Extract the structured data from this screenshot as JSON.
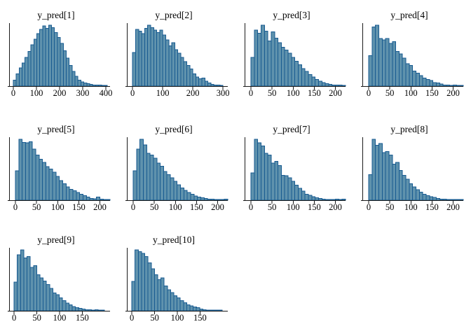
{
  "figure": {
    "background": "#ffffff",
    "bar_fill": "#5f92ad",
    "bar_stroke": "#175a90",
    "axis_color": "#1a1a1a",
    "text_color": "#000000"
  },
  "chart_data": [
    {
      "type": "histogram",
      "title": "y_pred[1]",
      "xticks": [
        0,
        100,
        200,
        300,
        400
      ],
      "xlim": [
        -18,
        418
      ],
      "ylabel": "",
      "xlabel": "",
      "grid": false,
      "bin_start": 0,
      "bin_width": 12.7,
      "heights": [
        0.1,
        0.2,
        0.3,
        0.38,
        0.47,
        0.57,
        0.68,
        0.77,
        0.86,
        0.93,
        0.99,
        0.95,
        1.0,
        0.96,
        0.88,
        0.8,
        0.7,
        0.58,
        0.46,
        0.34,
        0.24,
        0.16,
        0.1,
        0.07,
        0.05,
        0.04,
        0.03,
        0.02,
        0.015,
        0.015,
        0.01,
        0.01
      ]
    },
    {
      "type": "histogram",
      "title": "y_pred[2]",
      "xticks": [
        0,
        100,
        200,
        300
      ],
      "xlim": [
        -19,
        316
      ],
      "ylabel": "",
      "xlabel": "",
      "grid": false,
      "bin_start": 0,
      "bin_width": 10,
      "heights": [
        0.55,
        0.93,
        0.9,
        0.86,
        0.95,
        1.0,
        0.96,
        0.92,
        0.88,
        0.92,
        0.84,
        0.76,
        0.66,
        0.71,
        0.6,
        0.54,
        0.47,
        0.4,
        0.34,
        0.28,
        0.2,
        0.15,
        0.12,
        0.13,
        0.08,
        0.05,
        0.03,
        0.02,
        0.015,
        0.01
      ]
    },
    {
      "type": "histogram",
      "title": "y_pred[3]",
      "xticks": [
        0,
        50,
        100,
        150,
        200
      ],
      "xlim": [
        -15,
        224
      ],
      "ylabel": "",
      "xlabel": "",
      "grid": false,
      "bin_start": 0,
      "bin_width": 8,
      "heights": [
        0.47,
        0.92,
        0.87,
        1.0,
        0.9,
        0.74,
        0.89,
        0.79,
        0.71,
        0.64,
        0.59,
        0.54,
        0.47,
        0.41,
        0.35,
        0.29,
        0.24,
        0.19,
        0.15,
        0.11,
        0.08,
        0.06,
        0.04,
        0.03,
        0.02,
        0.02,
        0.015,
        0.01
      ]
    },
    {
      "type": "histogram",
      "title": "y_pred[4]",
      "xticks": [
        0,
        50,
        100,
        150,
        200
      ],
      "xlim": [
        -15,
        224
      ],
      "ylabel": "",
      "xlabel": "",
      "grid": false,
      "bin_start": 0,
      "bin_width": 8,
      "heights": [
        0.5,
        0.97,
        1.0,
        0.78,
        0.76,
        0.78,
        0.7,
        0.73,
        0.57,
        0.53,
        0.46,
        0.37,
        0.34,
        0.25,
        0.21,
        0.17,
        0.13,
        0.11,
        0.09,
        0.06,
        0.05,
        0.035,
        0.02,
        0.015,
        0.01,
        0.02,
        0.01,
        0.01
      ]
    },
    {
      "type": "histogram",
      "title": "y_pred[5]",
      "xticks": [
        0,
        50,
        100,
        150,
        200
      ],
      "xlim": [
        -15,
        224
      ],
      "ylabel": "",
      "xlabel": "",
      "grid": false,
      "bin_start": 0,
      "bin_width": 8,
      "heights": [
        0.48,
        1.0,
        0.95,
        0.94,
        0.96,
        0.84,
        0.74,
        0.67,
        0.62,
        0.55,
        0.51,
        0.46,
        0.39,
        0.32,
        0.27,
        0.22,
        0.18,
        0.155,
        0.125,
        0.1,
        0.075,
        0.05,
        0.03,
        0.025,
        0.05,
        0.015,
        0.01,
        0.01
      ]
    },
    {
      "type": "histogram",
      "title": "y_pred[6]",
      "xticks": [
        0,
        50,
        100,
        150,
        200
      ],
      "xlim": [
        -15,
        224
      ],
      "ylabel": "",
      "xlabel": "",
      "grid": false,
      "bin_start": 0,
      "bin_width": 8,
      "heights": [
        0.48,
        0.84,
        1.0,
        0.91,
        0.77,
        0.74,
        0.69,
        0.61,
        0.56,
        0.47,
        0.42,
        0.37,
        0.31,
        0.255,
        0.2,
        0.16,
        0.125,
        0.095,
        0.07,
        0.05,
        0.04,
        0.03,
        0.02,
        0.015,
        0.01,
        0.01,
        0.005,
        0.015
      ]
    },
    {
      "type": "histogram",
      "title": "y_pred[7]",
      "xticks": [
        0,
        50,
        100,
        150,
        200
      ],
      "xlim": [
        -15,
        224
      ],
      "ylabel": "",
      "xlabel": "",
      "grid": false,
      "bin_start": 0,
      "bin_width": 8,
      "heights": [
        0.45,
        1.0,
        0.94,
        0.89,
        0.77,
        0.74,
        0.61,
        0.64,
        0.57,
        0.41,
        0.4,
        0.37,
        0.31,
        0.245,
        0.195,
        0.15,
        0.1,
        0.08,
        0.055,
        0.04,
        0.03,
        0.02,
        0.01,
        0.01,
        0.005,
        0.015,
        0.005,
        0.015
      ]
    },
    {
      "type": "histogram",
      "title": "y_pred[8]",
      "xticks": [
        0,
        50,
        100,
        150,
        200
      ],
      "xlim": [
        -15,
        224
      ],
      "ylabel": "",
      "xlabel": "",
      "grid": false,
      "bin_start": 0,
      "bin_width": 8,
      "heights": [
        0.42,
        1.0,
        0.9,
        0.93,
        0.78,
        0.8,
        0.74,
        0.59,
        0.62,
        0.49,
        0.41,
        0.345,
        0.27,
        0.22,
        0.175,
        0.135,
        0.1,
        0.075,
        0.055,
        0.045,
        0.03,
        0.02,
        0.015,
        0.01,
        0.005,
        0.01,
        0.005,
        0.01
      ]
    },
    {
      "type": "histogram",
      "title": "y_pred[9]",
      "xticks": [
        0,
        50,
        100,
        150
      ],
      "xlim": [
        -11,
        211
      ],
      "ylabel": "",
      "xlabel": "",
      "grid": false,
      "bin_start": 0,
      "bin_width": 7.1,
      "heights": [
        0.47,
        0.92,
        1.0,
        0.87,
        0.89,
        0.71,
        0.74,
        0.59,
        0.54,
        0.49,
        0.43,
        0.37,
        0.295,
        0.265,
        0.215,
        0.165,
        0.125,
        0.095,
        0.07,
        0.05,
        0.04,
        0.03,
        0.02,
        0.015,
        0.01,
        0.015,
        0.005,
        0.01
      ]
    },
    {
      "type": "histogram",
      "title": "y_pred[10]",
      "xticks": [
        0,
        50,
        100,
        150
      ],
      "xlim": [
        -11,
        211
      ],
      "ylabel": "",
      "xlabel": "",
      "grid": false,
      "bin_start": 0,
      "bin_width": 7.1,
      "heights": [
        0.48,
        1.0,
        0.97,
        0.94,
        0.89,
        0.79,
        0.69,
        0.59,
        0.51,
        0.54,
        0.41,
        0.345,
        0.3,
        0.25,
        0.215,
        0.165,
        0.13,
        0.1,
        0.08,
        0.065,
        0.05,
        0.03,
        0.02,
        0.01,
        0.01,
        0.005,
        0.01,
        0.005
      ]
    }
  ]
}
